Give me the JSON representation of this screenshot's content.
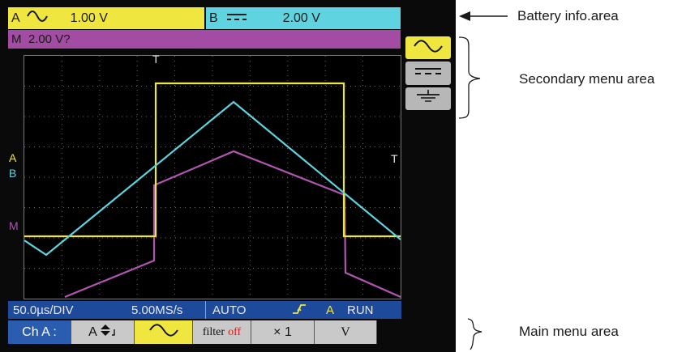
{
  "channels": {
    "a": {
      "name": "A",
      "coupling_icon": "ac-wave-icon",
      "value": "1.00 V",
      "color": "#f0e640"
    },
    "b": {
      "name": "B",
      "coupling_icon": "dc-lines-icon",
      "value": "2.00 V",
      "color": "#5fd3df"
    },
    "m": {
      "label": "M  2.00 V?",
      "color": "#a24da3"
    }
  },
  "trace_markers": {
    "a": "A",
    "b": "B",
    "m": "M",
    "trigger_top": "T",
    "trigger_right": "T"
  },
  "status_bar": {
    "timebase": "50.0µs/DIV",
    "sample_rate": "5.00MS/s",
    "mode": "AUTO",
    "trigger_icon": "trigger-edge-icon",
    "trigger_channel": "A",
    "run_state": "RUN"
  },
  "main_menu": {
    "channel_label": "Ch A :",
    "channel_select": "A",
    "coupling_icon": "ac-wave-icon",
    "filter_label": "filter",
    "filter_state": "off",
    "probe_factor": "× 1",
    "unit": "V"
  },
  "secondary_menu": [
    {
      "icon": "ac-wave-icon",
      "active": true
    },
    {
      "icon": "dc-lines-icon",
      "active": false
    },
    {
      "icon": "ground-icon",
      "active": false
    }
  ],
  "annotations": {
    "battery": "Battery info.area",
    "secondary": "Secondary menu area",
    "main": "Main menu area"
  }
}
